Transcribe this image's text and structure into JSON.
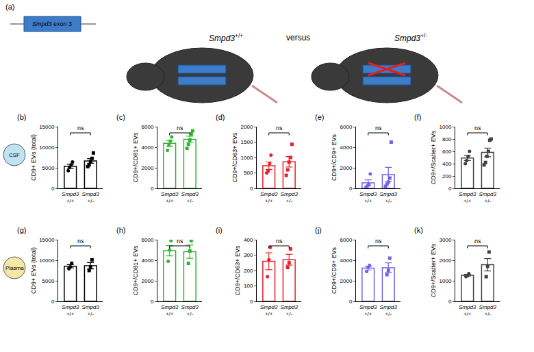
{
  "schematic": {
    "label": "(a)",
    "gene_box": "Smpd3 exon 3",
    "left": "Smpd3 +/+",
    "middle": "versus",
    "right": "Smpd3 +/-"
  },
  "row_labels": [
    "CSF",
    "Plasma"
  ],
  "chart_data": [
    {
      "panel": "(b)",
      "type": "bar",
      "y_label": "CD9+ EVs (total)",
      "categories": [
        "Smpd3 +/+",
        "Smpd3 +/-"
      ],
      "values": [
        5375,
        6680
      ],
      "errors": [
        480,
        560
      ],
      "points": [
        [
          4300,
          5100,
          5700,
          6400
        ],
        [
          5300,
          5700,
          6500,
          7300,
          8600
        ]
      ],
      "color": "#000000",
      "ylim": [
        0,
        15000
      ],
      "yticks": [
        0,
        5000,
        10000,
        15000
      ],
      "significance": "ns"
    },
    {
      "panel": "(c)",
      "type": "bar",
      "y_label": "CD9+/CD81+ EVs",
      "categories": [
        "Smpd3 +/+",
        "Smpd3 +/-"
      ],
      "values": [
        4375,
        4760
      ],
      "errors": [
        280,
        310
      ],
      "points": [
        [
          3700,
          4200,
          4600,
          5000
        ],
        [
          3900,
          4300,
          4700,
          5300,
          5600
        ]
      ],
      "color": "#2fb52f",
      "ylim": [
        0,
        6000
      ],
      "yticks": [
        0,
        2000,
        4000,
        6000
      ],
      "significance": "ns"
    },
    {
      "panel": "(d)",
      "type": "bar",
      "y_label": "CD9+/CD63+ EVs",
      "categories": [
        "Smpd3 +/+",
        "Smpd3 +/-"
      ],
      "values": [
        735,
        860
      ],
      "errors": [
        120,
        170
      ],
      "points": [
        [
          500,
          560,
          800,
          1080
        ],
        [
          420,
          600,
          850,
          1000,
          1430
        ]
      ],
      "color": "#e52129",
      "ylim": [
        0,
        2000
      ],
      "yticks": [
        0,
        500,
        1000,
        1500,
        2000
      ],
      "significance": "ns"
    },
    {
      "panel": "(e)",
      "type": "bar",
      "y_label": "CD9+/CD9+ EVs",
      "categories": [
        "Smpd3 +/+",
        "Smpd3 +/-"
      ],
      "values": [
        537,
        1340
      ],
      "errors": [
        290,
        700
      ],
      "points": [
        [
          100,
          250,
          400,
          1400
        ],
        [
          200,
          400,
          600,
          1000,
          4500
        ]
      ],
      "color": "#6f63e8",
      "ylim": [
        0,
        6000
      ],
      "yticks": [
        0,
        2000,
        4000,
        6000
      ],
      "significance": "ns"
    },
    {
      "panel": "(f)",
      "type": "bar",
      "y_label": "CD9+/Scatter+ EVs",
      "categories": [
        "Smpd3 +/+",
        "Smpd3 +/-"
      ],
      "values": [
        492,
        583
      ],
      "errors": [
        40,
        70
      ],
      "points": [
        [
          400,
          450,
          520,
          600
        ],
        [
          380,
          420,
          520,
          600,
          780,
          800
        ]
      ],
      "color": "#404040",
      "ylim": [
        0,
        1000
      ],
      "yticks": [
        0,
        200,
        400,
        600,
        800,
        1000
      ],
      "significance": "ns"
    },
    {
      "panel": "(g)",
      "type": "bar",
      "y_label": "CD9+ EVs (total)",
      "categories": [
        "Smpd3 +/+",
        "Smpd3 +/-"
      ],
      "values": [
        8530,
        8670
      ],
      "errors": [
        400,
        760
      ],
      "points": [
        [
          7900,
          8400,
          9300
        ],
        [
          7500,
          8400,
          10100
        ]
      ],
      "color": "#000000",
      "ylim": [
        0,
        15000
      ],
      "yticks": [
        0,
        5000,
        10000,
        15000
      ],
      "significance": "ns"
    },
    {
      "panel": "(h)",
      "type": "bar",
      "y_label": "CD9+/CD81+ EVs",
      "categories": [
        "Smpd3 +/+",
        "Smpd3 +/-"
      ],
      "values": [
        4930,
        4830
      ],
      "errors": [
        500,
        640
      ],
      "points": [
        [
          3900,
          5000,
          5900
        ],
        [
          3700,
          4900,
          5900
        ]
      ],
      "color": "#2fb52f",
      "ylim": [
        0,
        6000
      ],
      "yticks": [
        0,
        2000,
        4000,
        6000
      ],
      "significance": "ns"
    },
    {
      "panel": "(i)",
      "type": "bar",
      "y_label": "CD9+/CD63+ EVs",
      "categories": [
        "Smpd3 +/+",
        "Smpd3 +/-"
      ],
      "values": [
        260,
        270
      ],
      "errors": [
        55,
        35
      ],
      "points": [
        [
          160,
          270,
          350
        ],
        [
          220,
          250,
          340
        ]
      ],
      "color": "#e52129",
      "ylim": [
        0,
        400
      ],
      "yticks": [
        0,
        100,
        200,
        300,
        400
      ],
      "significance": "ns"
    },
    {
      "panel": "(j)",
      "type": "bar",
      "y_label": "CD9+/CD9+ EVs",
      "categories": [
        "Smpd3 +/+",
        "Smpd3 +/-"
      ],
      "values": [
        3230,
        3270
      ],
      "errors": [
        180,
        480
      ],
      "points": [
        [
          2900,
          3300,
          3500
        ],
        [
          2600,
          3000,
          4200
        ]
      ],
      "color": "#6f63e8",
      "ylim": [
        0,
        6000
      ],
      "yticks": [
        0,
        2000,
        4000,
        6000
      ],
      "significance": "ns"
    },
    {
      "panel": "(k)",
      "type": "bar",
      "y_label": "CD9+/Scatter+ EVs",
      "categories": [
        "Smpd3 +/+",
        "Smpd3 +/-"
      ],
      "values": [
        1270,
        1780
      ],
      "errors": [
        45,
        300
      ],
      "points": [
        [
          1200,
          1250,
          1350
        ],
        [
          1200,
          1700,
          2400
        ]
      ],
      "color": "#404040",
      "ylim": [
        0,
        3000
      ],
      "yticks": [
        0,
        1000,
        2000,
        3000
      ],
      "significance": "ns"
    }
  ]
}
